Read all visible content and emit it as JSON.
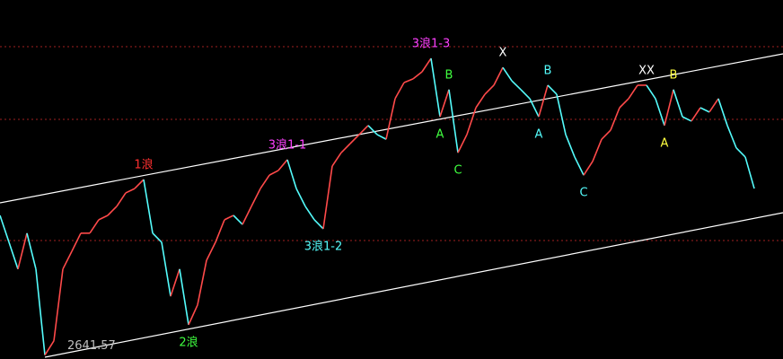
{
  "chart_data": {
    "type": "line",
    "ylim": [
      2630,
      3700
    ],
    "up_color": "#ff4a4a",
    "down_color": "#54fcfc",
    "values": [
      3058,
      2978,
      2898,
      3005,
      2898,
      2641.57,
      2684,
      2898,
      2951,
      3005,
      3005,
      3045,
      3058,
      3085,
      3125,
      3138,
      3165,
      3005,
      2978,
      2817,
      2898,
      2732,
      2791,
      2924,
      2978,
      3045,
      3058,
      3031,
      3085,
      3138,
      3178,
      3192,
      3224,
      3138,
      3085,
      3045,
      3018,
      3205,
      3245,
      3272,
      3299,
      3326,
      3299,
      3285,
      3406,
      3454,
      3465,
      3486,
      3526,
      3352,
      3433,
      3245,
      3299,
      3379,
      3419,
      3446,
      3499,
      3459,
      3433,
      3406,
      3352,
      3446,
      3419,
      3299,
      3232,
      3178,
      3219,
      3285,
      3312,
      3379,
      3406,
      3446,
      3446,
      3406,
      3326,
      3433,
      3352,
      3339,
      3379,
      3366,
      3406,
      3326,
      3259,
      3232,
      3138
    ],
    "annotations": [
      {
        "text": "1浪",
        "at": 16,
        "side": "above",
        "color": "#ff3030"
      },
      {
        "text": "2浪",
        "at": 21,
        "side": "below",
        "color": "#40ff40"
      },
      {
        "text": "3浪1-1",
        "at": 32,
        "side": "above",
        "color": "#ff40ff"
      },
      {
        "text": "3浪1-2",
        "at": 36,
        "side": "below",
        "color": "#54fcfc"
      },
      {
        "text": "3浪1-3",
        "at": 48,
        "side": "above",
        "color": "#ff40ff"
      },
      {
        "text": "A",
        "at": 49,
        "side": "below",
        "color": "#40ff40"
      },
      {
        "text": "B",
        "at": 50,
        "side": "above",
        "color": "#40ff40"
      },
      {
        "text": "C",
        "at": 51,
        "side": "below",
        "color": "#40ff40"
      },
      {
        "text": "X",
        "at": 56,
        "side": "above",
        "color": "#ffffff"
      },
      {
        "text": "A",
        "at": 60,
        "side": "below",
        "color": "#54fcfc"
      },
      {
        "text": "B",
        "at": 61,
        "side": "above",
        "color": "#54fcfc"
      },
      {
        "text": "C",
        "at": 65,
        "side": "below",
        "color": "#54fcfc"
      },
      {
        "text": "XX",
        "at": 72,
        "side": "above",
        "color": "#ffffff"
      },
      {
        "text": "A",
        "at": 74,
        "side": "below",
        "color": "#ffff40"
      },
      {
        "text": "B",
        "at": 75,
        "side": "above",
        "color": "#ffff40"
      },
      {
        "text": "2641.57",
        "at": 5,
        "side": "right",
        "color": "#c0c0c0"
      }
    ]
  }
}
